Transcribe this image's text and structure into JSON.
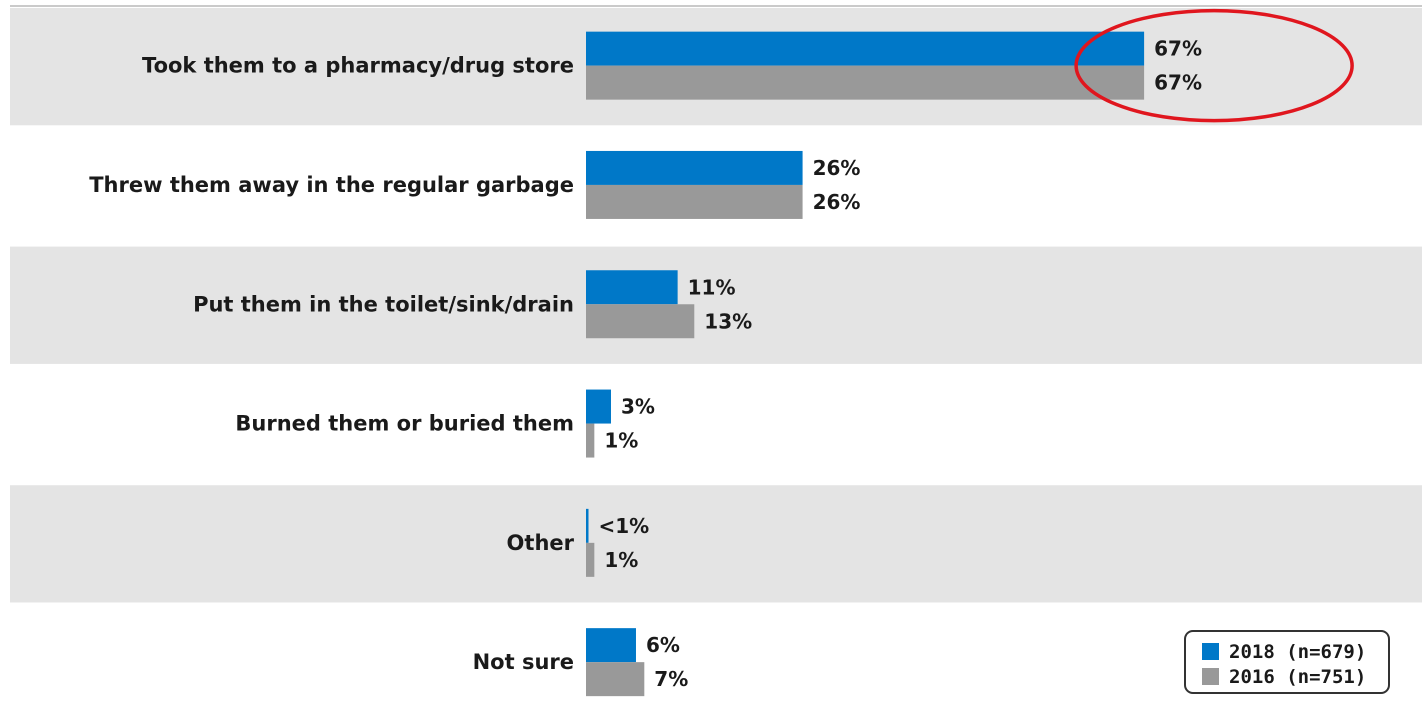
{
  "chart_data": {
    "type": "bar",
    "orientation": "horizontal",
    "categories": [
      "Took them to a pharmacy/drug store",
      "Threw them away in the regular garbage",
      "Put them in the toilet/sink/drain",
      "Burned them or buried them",
      "Other",
      "Not sure"
    ],
    "series": [
      {
        "name": "2018 (n=679)",
        "color": "#0078c8",
        "values": [
          67,
          26,
          11,
          3,
          0.3,
          6
        ],
        "data_labels": [
          "67%",
          "26%",
          "11%",
          "3%",
          "<1%",
          "6%"
        ]
      },
      {
        "name": "2016 (n=751)",
        "color": "#999999",
        "values": [
          67,
          26,
          13,
          1,
          1,
          7
        ],
        "data_labels": [
          "67%",
          "26%",
          "13%",
          "1%",
          "1%",
          "7%"
        ]
      }
    ],
    "xlim": [
      0,
      100
    ],
    "grid": false,
    "legend_position": "bottom-right",
    "band_color": "#e4e4e4",
    "annotation": {
      "shape": "ellipse",
      "color": "#e0161e",
      "highlights": "Took them to a pharmacy/drug store"
    }
  }
}
